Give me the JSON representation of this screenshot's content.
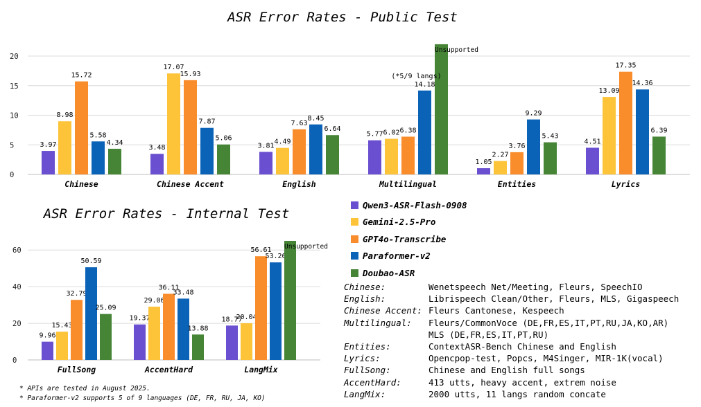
{
  "chart_data": [
    {
      "type": "bar",
      "title": "ASR Error Rates - Public Test",
      "categories": [
        "Chinese",
        "Chinese Accent",
        "English",
        "Multilingual",
        "Entities",
        "Lyrics"
      ],
      "yticks": [
        "0",
        "5",
        "10",
        "15",
        "20"
      ],
      "ylim": [
        0,
        20
      ],
      "grid": true,
      "series": [
        {
          "name": "Qwen3-ASR-Flash-0908",
          "color": "#6a4fd0",
          "values": [
            3.97,
            3.48,
            3.81,
            5.77,
            1.05,
            4.51
          ],
          "labels": [
            "3.97",
            "3.48",
            "3.81",
            "5.77",
            "1.05",
            "4.51"
          ]
        },
        {
          "name": "Gemini-2.5-Pro",
          "color": "#fdc43a",
          "values": [
            8.98,
            17.07,
            4.49,
            6.02,
            2.27,
            13.09
          ],
          "labels": [
            "8.98",
            "17.07",
            "4.49",
            "6.02",
            "2.27",
            "13.09"
          ]
        },
        {
          "name": "GPT4o-Transcribe",
          "color": "#f98c2b",
          "values": [
            15.72,
            15.93,
            7.63,
            6.38,
            3.76,
            17.35
          ],
          "labels": [
            "15.72",
            "15.93",
            "7.63",
            "6.38",
            "3.76",
            "17.35"
          ]
        },
        {
          "name": "Paraformer-v2",
          "color": "#0b63b8",
          "values": [
            5.58,
            7.87,
            8.45,
            14.18,
            9.29,
            14.36
          ],
          "labels": [
            "5.58",
            "7.87",
            "8.45",
            "14.18",
            "9.29",
            "14.36"
          ]
        },
        {
          "name": "Doubao-ASR",
          "color": "#468536",
          "values": [
            4.34,
            5.06,
            6.64,
            22.0,
            5.43,
            6.39
          ],
          "labels": [
            "4.34",
            "5.06",
            "6.64",
            "Unsupported",
            "5.43",
            "6.39"
          ]
        }
      ],
      "annotation": "(*5/9 langs)"
    },
    {
      "type": "bar",
      "title": "ASR Error Rates - Internal Test",
      "categories": [
        "FullSong",
        "AccentHard",
        "LangMix"
      ],
      "yticks": [
        "0",
        "20",
        "40",
        "60"
      ],
      "ylim": [
        0,
        65
      ],
      "grid": true,
      "series": [
        {
          "name": "Qwen3-ASR-Flash-0908",
          "color": "#6a4fd0",
          "values": [
            9.96,
            19.37,
            18.77
          ],
          "labels": [
            "9.96",
            "19.37",
            "18.77"
          ]
        },
        {
          "name": "Gemini-2.5-Pro",
          "color": "#fdc43a",
          "values": [
            15.43,
            29.06,
            20.04
          ],
          "labels": [
            "15.43",
            "29.06",
            "20.04"
          ]
        },
        {
          "name": "GPT4o-Transcribe",
          "color": "#f98c2b",
          "values": [
            32.79,
            36.11,
            56.61
          ],
          "labels": [
            "32.79",
            "36.11",
            "56.61"
          ]
        },
        {
          "name": "Paraformer-v2",
          "color": "#0b63b8",
          "values": [
            50.59,
            33.48,
            53.26
          ],
          "labels": [
            "50.59",
            "33.48",
            "53.26"
          ]
        },
        {
          "name": "Doubao-ASR",
          "color": "#468536",
          "values": [
            25.09,
            13.88,
            65.0
          ],
          "labels": [
            "25.09",
            "13.88",
            "Unsupported"
          ]
        }
      ]
    }
  ],
  "legend": [
    "Qwen3-ASR-Flash-0908",
    "Gemini-2.5-Pro",
    "GPT4o-Transcribe",
    "Paraformer-v2",
    "Doubao-ASR"
  ],
  "datasets": [
    {
      "name": "Chinese:",
      "desc": "Wenetspeech Net/Meeting, Fleurs, SpeechIO"
    },
    {
      "name": "English:",
      "desc": "Librispeech Clean/Other, Fleurs, MLS, Gigaspeech"
    },
    {
      "name": "Chinese Accent:",
      "desc": "Fleurs Cantonese, Kespeech"
    },
    {
      "name": "Multilingual:",
      "desc": "Fleurs/CommonVoce (DE,FR,ES,IT,PT,RU,JA,KO,AR)"
    },
    {
      "name": "",
      "desc": "MLS (DE,FR,ES,IT,PT,RU)"
    },
    {
      "name": "Entities:",
      "desc": "ContextASR-Bench Chinese and English"
    },
    {
      "name": "Lyrics:",
      "desc": "Opencpop-test, Popcs, M4Singer, MIR-1K(vocal)"
    },
    {
      "name": "FullSong:",
      "desc": "Chinese and English full songs"
    },
    {
      "name": "AccentHard:",
      "desc": "413 utts, heavy accent, extrem noise"
    },
    {
      "name": "LangMix:",
      "desc": "2000 utts, 11 langs random concate"
    }
  ],
  "footnotes": [
    "* APIs are tested in August 2025.",
    "* Paraformer-v2 supports 5 of 9 languages (DE, FR, RU, JA, KO)"
  ]
}
